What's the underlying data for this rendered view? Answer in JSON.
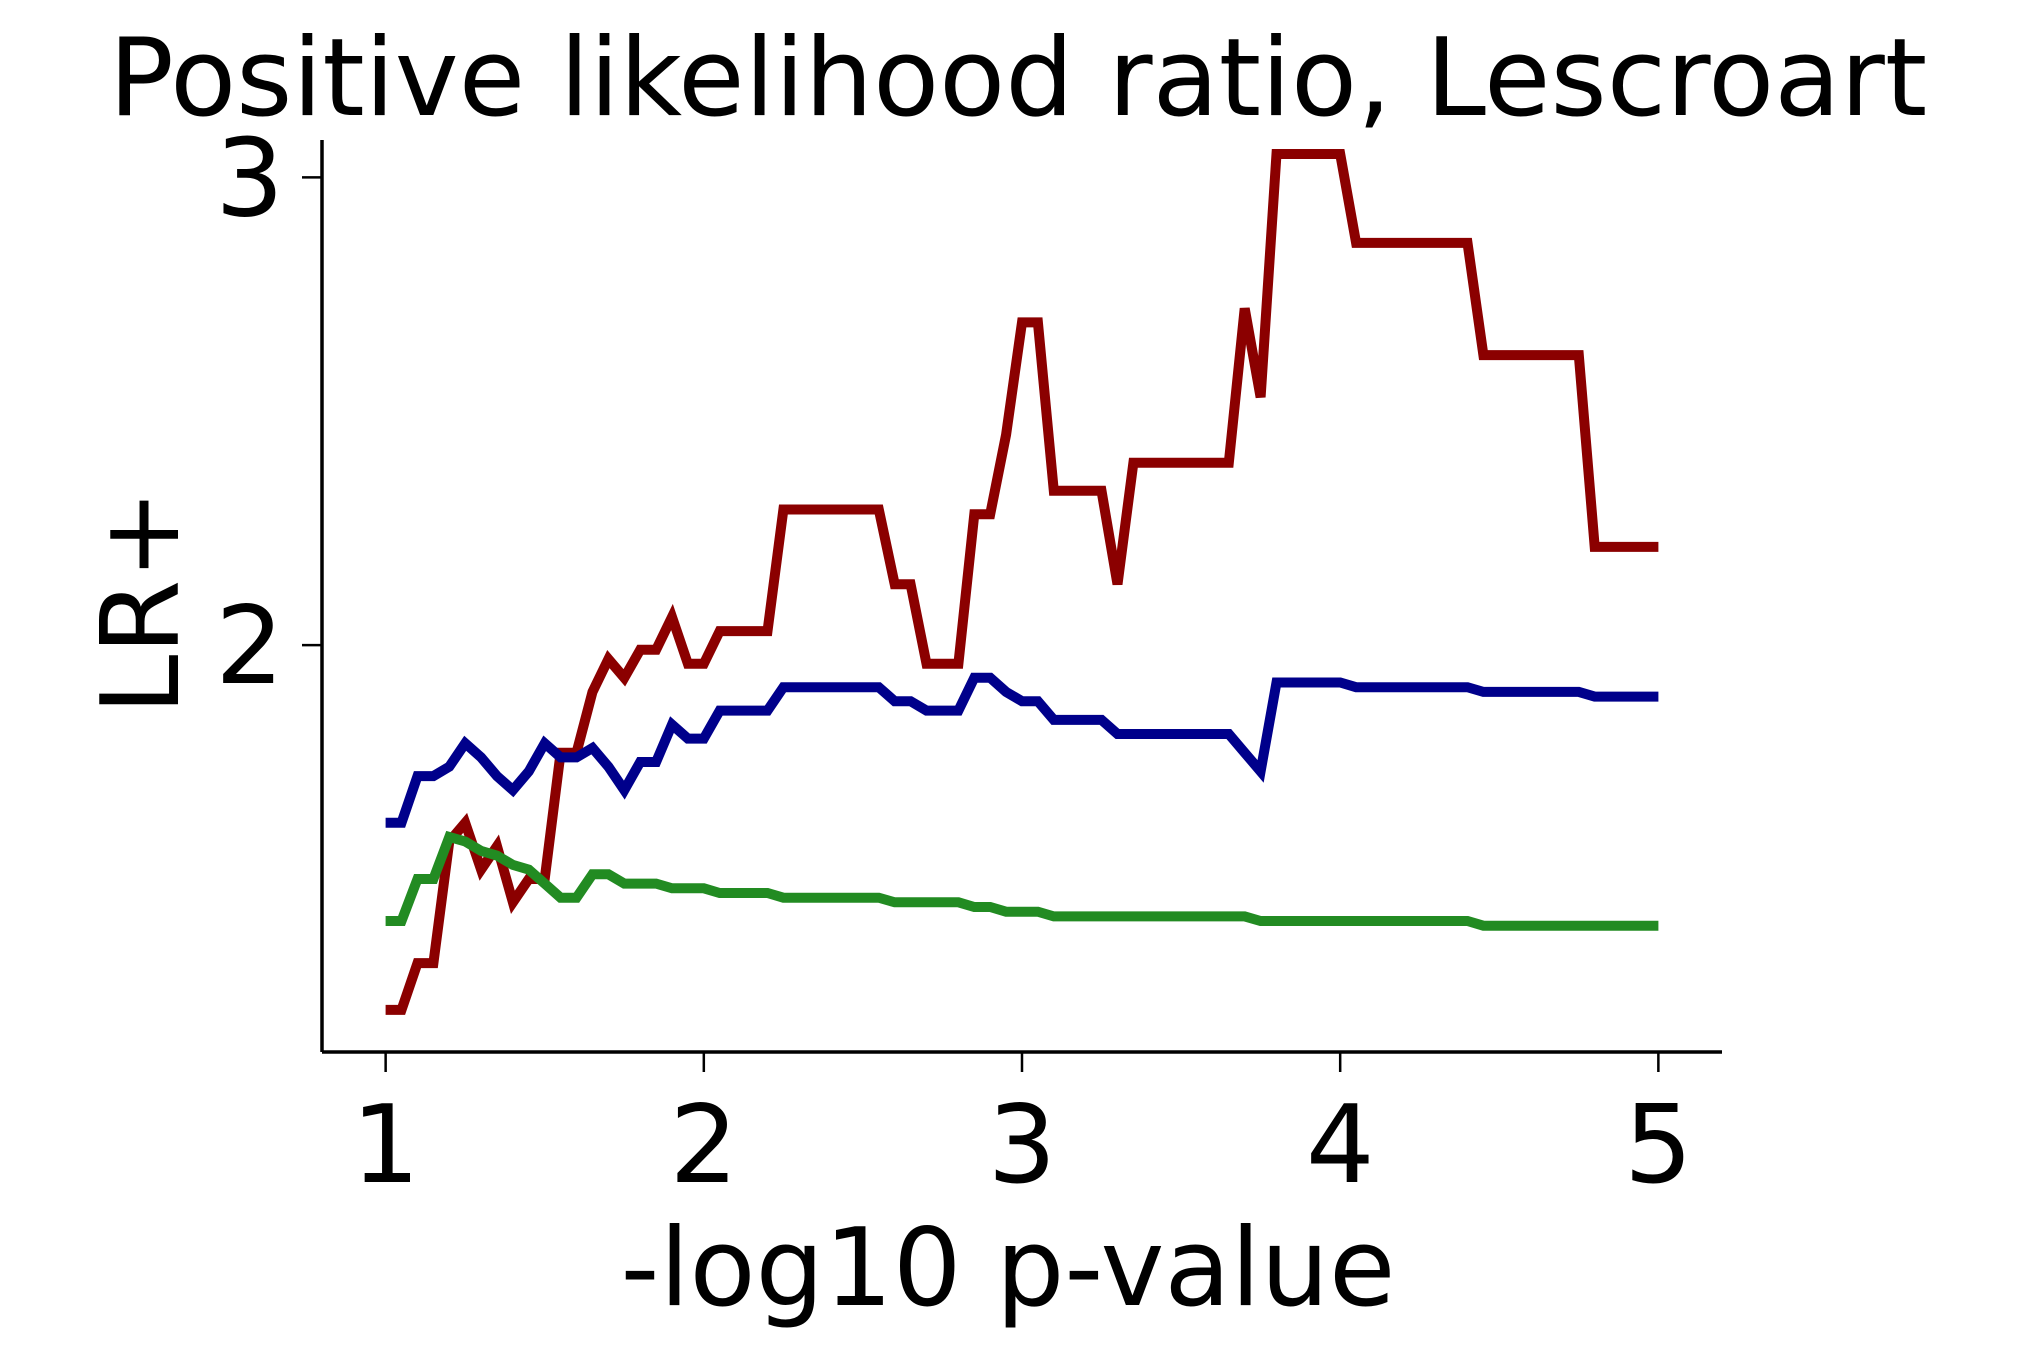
{
  "chart_data": {
    "type": "line",
    "title": "Positive likelihood ratio, Lescroart",
    "xlabel": "-log10 p-value",
    "ylabel": "LR+",
    "xlim": [
      0.8,
      5.2
    ],
    "ylim": [
      1.13,
      3.08
    ],
    "xticks": [
      1,
      2,
      3,
      4,
      5
    ],
    "yticks": [
      2,
      3
    ],
    "grid": false,
    "legend": "none",
    "series": [
      {
        "color": "#8b0000",
        "points": [
          [
            1.0,
            1.22
          ],
          [
            1.05,
            1.22
          ],
          [
            1.1,
            1.32
          ],
          [
            1.15,
            1.32
          ],
          [
            1.2,
            1.58
          ],
          [
            1.25,
            1.62
          ],
          [
            1.3,
            1.52
          ],
          [
            1.35,
            1.57
          ],
          [
            1.4,
            1.45
          ],
          [
            1.45,
            1.5
          ],
          [
            1.5,
            1.5
          ],
          [
            1.55,
            1.77
          ],
          [
            1.6,
            1.77
          ],
          [
            1.65,
            1.9
          ],
          [
            1.7,
            1.97
          ],
          [
            1.75,
            1.93
          ],
          [
            1.8,
            1.99
          ],
          [
            1.85,
            1.99
          ],
          [
            1.9,
            2.06
          ],
          [
            1.95,
            1.96
          ],
          [
            2.0,
            1.96
          ],
          [
            2.05,
            2.03
          ],
          [
            2.1,
            2.03
          ],
          [
            2.15,
            2.03
          ],
          [
            2.2,
            2.03
          ],
          [
            2.25,
            2.29
          ],
          [
            2.3,
            2.29
          ],
          [
            2.35,
            2.29
          ],
          [
            2.4,
            2.29
          ],
          [
            2.45,
            2.29
          ],
          [
            2.5,
            2.29
          ],
          [
            2.55,
            2.29
          ],
          [
            2.6,
            2.13
          ],
          [
            2.65,
            2.13
          ],
          [
            2.7,
            1.96
          ],
          [
            2.75,
            1.96
          ],
          [
            2.8,
            1.96
          ],
          [
            2.85,
            2.28
          ],
          [
            2.9,
            2.28
          ],
          [
            2.95,
            2.45
          ],
          [
            3.0,
            2.69
          ],
          [
            3.05,
            2.69
          ],
          [
            3.1,
            2.33
          ],
          [
            3.15,
            2.33
          ],
          [
            3.2,
            2.33
          ],
          [
            3.25,
            2.33
          ],
          [
            3.3,
            2.13
          ],
          [
            3.35,
            2.39
          ],
          [
            3.4,
            2.39
          ],
          [
            3.45,
            2.39
          ],
          [
            3.5,
            2.39
          ],
          [
            3.55,
            2.39
          ],
          [
            3.6,
            2.39
          ],
          [
            3.65,
            2.39
          ],
          [
            3.7,
            2.72
          ],
          [
            3.75,
            2.53
          ],
          [
            3.8,
            3.05
          ],
          [
            3.85,
            3.05
          ],
          [
            3.9,
            3.05
          ],
          [
            3.95,
            3.05
          ],
          [
            4.0,
            3.05
          ],
          [
            4.05,
            2.86
          ],
          [
            4.1,
            2.86
          ],
          [
            4.15,
            2.86
          ],
          [
            4.2,
            2.86
          ],
          [
            4.25,
            2.86
          ],
          [
            4.3,
            2.86
          ],
          [
            4.35,
            2.86
          ],
          [
            4.4,
            2.86
          ],
          [
            4.45,
            2.62
          ],
          [
            4.5,
            2.62
          ],
          [
            4.55,
            2.62
          ],
          [
            4.6,
            2.62
          ],
          [
            4.65,
            2.62
          ],
          [
            4.7,
            2.62
          ],
          [
            4.75,
            2.62
          ],
          [
            4.8,
            2.21
          ],
          [
            4.85,
            2.21
          ],
          [
            4.9,
            2.21
          ],
          [
            4.95,
            2.21
          ],
          [
            5.0,
            2.21
          ]
        ]
      },
      {
        "color": "#00008b",
        "points": [
          [
            1.0,
            1.62
          ],
          [
            1.05,
            1.62
          ],
          [
            1.1,
            1.72
          ],
          [
            1.15,
            1.72
          ],
          [
            1.2,
            1.74
          ],
          [
            1.25,
            1.79
          ],
          [
            1.3,
            1.76
          ],
          [
            1.35,
            1.72
          ],
          [
            1.4,
            1.69
          ],
          [
            1.45,
            1.73
          ],
          [
            1.5,
            1.79
          ],
          [
            1.55,
            1.76
          ],
          [
            1.6,
            1.76
          ],
          [
            1.65,
            1.78
          ],
          [
            1.7,
            1.74
          ],
          [
            1.75,
            1.69
          ],
          [
            1.8,
            1.75
          ],
          [
            1.85,
            1.75
          ],
          [
            1.9,
            1.83
          ],
          [
            1.95,
            1.8
          ],
          [
            2.0,
            1.8
          ],
          [
            2.05,
            1.86
          ],
          [
            2.1,
            1.86
          ],
          [
            2.15,
            1.86
          ],
          [
            2.2,
            1.86
          ],
          [
            2.25,
            1.91
          ],
          [
            2.3,
            1.91
          ],
          [
            2.35,
            1.91
          ],
          [
            2.4,
            1.91
          ],
          [
            2.45,
            1.91
          ],
          [
            2.5,
            1.91
          ],
          [
            2.55,
            1.91
          ],
          [
            2.6,
            1.88
          ],
          [
            2.65,
            1.88
          ],
          [
            2.7,
            1.86
          ],
          [
            2.75,
            1.86
          ],
          [
            2.8,
            1.86
          ],
          [
            2.85,
            1.93
          ],
          [
            2.9,
            1.93
          ],
          [
            2.95,
            1.9
          ],
          [
            3.0,
            1.88
          ],
          [
            3.05,
            1.88
          ],
          [
            3.1,
            1.84
          ],
          [
            3.15,
            1.84
          ],
          [
            3.2,
            1.84
          ],
          [
            3.25,
            1.84
          ],
          [
            3.3,
            1.81
          ],
          [
            3.35,
            1.81
          ],
          [
            3.4,
            1.81
          ],
          [
            3.45,
            1.81
          ],
          [
            3.5,
            1.81
          ],
          [
            3.55,
            1.81
          ],
          [
            3.6,
            1.81
          ],
          [
            3.65,
            1.81
          ],
          [
            3.7,
            1.77
          ],
          [
            3.75,
            1.73
          ],
          [
            3.8,
            1.92
          ],
          [
            3.85,
            1.92
          ],
          [
            3.9,
            1.92
          ],
          [
            3.95,
            1.92
          ],
          [
            4.0,
            1.92
          ],
          [
            4.05,
            1.91
          ],
          [
            4.1,
            1.91
          ],
          [
            4.15,
            1.91
          ],
          [
            4.2,
            1.91
          ],
          [
            4.25,
            1.91
          ],
          [
            4.3,
            1.91
          ],
          [
            4.35,
            1.91
          ],
          [
            4.4,
            1.91
          ],
          [
            4.45,
            1.9
          ],
          [
            4.5,
            1.9
          ],
          [
            4.55,
            1.9
          ],
          [
            4.6,
            1.9
          ],
          [
            4.65,
            1.9
          ],
          [
            4.7,
            1.9
          ],
          [
            4.75,
            1.9
          ],
          [
            4.8,
            1.89
          ],
          [
            4.85,
            1.89
          ],
          [
            4.9,
            1.89
          ],
          [
            4.95,
            1.89
          ],
          [
            5.0,
            1.89
          ]
        ]
      },
      {
        "color": "#228b22",
        "points": [
          [
            1.0,
            1.41
          ],
          [
            1.05,
            1.41
          ],
          [
            1.1,
            1.5
          ],
          [
            1.15,
            1.5
          ],
          [
            1.2,
            1.59
          ],
          [
            1.25,
            1.58
          ],
          [
            1.3,
            1.56
          ],
          [
            1.35,
            1.55
          ],
          [
            1.4,
            1.53
          ],
          [
            1.45,
            1.52
          ],
          [
            1.5,
            1.49
          ],
          [
            1.55,
            1.46
          ],
          [
            1.6,
            1.46
          ],
          [
            1.65,
            1.51
          ],
          [
            1.7,
            1.51
          ],
          [
            1.75,
            1.49
          ],
          [
            1.8,
            1.49
          ],
          [
            1.85,
            1.49
          ],
          [
            1.9,
            1.48
          ],
          [
            1.95,
            1.48
          ],
          [
            2.0,
            1.48
          ],
          [
            2.05,
            1.47
          ],
          [
            2.1,
            1.47
          ],
          [
            2.15,
            1.47
          ],
          [
            2.2,
            1.47
          ],
          [
            2.25,
            1.46
          ],
          [
            2.3,
            1.46
          ],
          [
            2.35,
            1.46
          ],
          [
            2.4,
            1.46
          ],
          [
            2.45,
            1.46
          ],
          [
            2.5,
            1.46
          ],
          [
            2.55,
            1.46
          ],
          [
            2.6,
            1.45
          ],
          [
            2.65,
            1.45
          ],
          [
            2.7,
            1.45
          ],
          [
            2.75,
            1.45
          ],
          [
            2.8,
            1.45
          ],
          [
            2.85,
            1.44
          ],
          [
            2.9,
            1.44
          ],
          [
            2.95,
            1.43
          ],
          [
            3.0,
            1.43
          ],
          [
            3.05,
            1.43
          ],
          [
            3.1,
            1.42
          ],
          [
            3.15,
            1.42
          ],
          [
            3.2,
            1.42
          ],
          [
            3.25,
            1.42
          ],
          [
            3.3,
            1.42
          ],
          [
            3.35,
            1.42
          ],
          [
            3.4,
            1.42
          ],
          [
            3.45,
            1.42
          ],
          [
            3.5,
            1.42
          ],
          [
            3.55,
            1.42
          ],
          [
            3.6,
            1.42
          ],
          [
            3.65,
            1.42
          ],
          [
            3.7,
            1.42
          ],
          [
            3.75,
            1.41
          ],
          [
            3.8,
            1.41
          ],
          [
            3.85,
            1.41
          ],
          [
            3.9,
            1.41
          ],
          [
            3.95,
            1.41
          ],
          [
            4.0,
            1.41
          ],
          [
            4.05,
            1.41
          ],
          [
            4.1,
            1.41
          ],
          [
            4.15,
            1.41
          ],
          [
            4.2,
            1.41
          ],
          [
            4.25,
            1.41
          ],
          [
            4.3,
            1.41
          ],
          [
            4.35,
            1.41
          ],
          [
            4.4,
            1.41
          ],
          [
            4.45,
            1.4
          ],
          [
            4.5,
            1.4
          ],
          [
            4.55,
            1.4
          ],
          [
            4.6,
            1.4
          ],
          [
            4.65,
            1.4
          ],
          [
            4.7,
            1.4
          ],
          [
            4.75,
            1.4
          ],
          [
            4.8,
            1.4
          ],
          [
            4.85,
            1.4
          ],
          [
            4.9,
            1.4
          ],
          [
            4.95,
            1.4
          ],
          [
            5.0,
            1.4
          ]
        ]
      }
    ]
  }
}
